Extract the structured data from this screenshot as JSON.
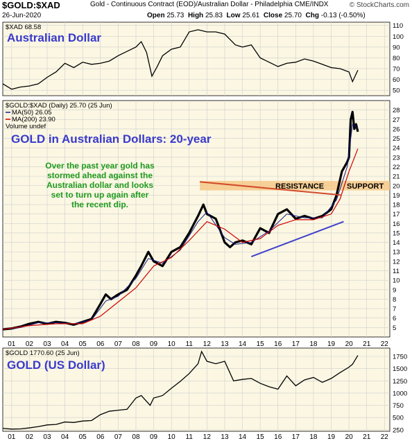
{
  "header": {
    "symbol": "$GOLD:$XAD",
    "description": "Gold - Continuous Contract (EOD)/Australian Dollar - Philadelphia  CME/INDX",
    "brand": "© StockCharts.com",
    "date": "26-Jun-2020",
    "open_label": "Open",
    "open_value": "25.73",
    "high_label": "High",
    "high_value": "25.83",
    "low_label": "Low",
    "low_value": "25.61",
    "close_label": "Close",
    "close_value": "25.70",
    "chg_label": "Chg",
    "chg_value": "-0.13 (-0.50%)"
  },
  "colors": {
    "panel_bg": "#fbf7e3",
    "grid": "#cfcfcf",
    "price": "#000000",
    "ma50": "#1a1a80",
    "ma200": "#cc0000",
    "annotation_green": "#1f9a1f",
    "title_blue": "#3a3acc",
    "resistance_line": "#d24a2a",
    "support_band": "#f6c98a",
    "trend_line": "#4040cc"
  },
  "chart_data": [
    {
      "type": "line",
      "panel": "xad",
      "legend": "$XAD 68.58",
      "title": "Australian Dollar",
      "ylim": [
        45,
        113
      ],
      "yticks": [
        50,
        60,
        70,
        80,
        90,
        100,
        110
      ],
      "series": [
        {
          "name": "$XAD",
          "x": [
            2000.5,
            2001,
            2001.5,
            2002,
            2002.5,
            2003,
            2003.5,
            2004,
            2004.5,
            2005,
            2005.5,
            2006,
            2006.5,
            2007,
            2007.5,
            2008,
            2008.3,
            2008.6,
            2008.9,
            2009.2,
            2009.5,
            2010,
            2010.5,
            2011,
            2011.5,
            2012,
            2012.5,
            2013,
            2013.3,
            2013.6,
            2014,
            2014.5,
            2015,
            2015.5,
            2016,
            2016.5,
            2017,
            2017.5,
            2018,
            2018.5,
            2019,
            2019.5,
            2020,
            2020.2,
            2020.5
          ],
          "values": [
            56,
            51,
            53,
            54,
            56,
            62,
            67,
            75,
            71,
            76,
            74,
            75,
            77,
            82,
            86,
            90,
            95,
            85,
            63,
            72,
            82,
            88,
            90,
            104,
            106,
            104,
            104,
            102,
            97,
            92,
            90,
            92,
            80,
            76,
            72,
            75,
            76,
            79,
            77,
            74,
            71,
            70,
            67,
            58,
            68.58
          ]
        }
      ]
    },
    {
      "type": "line",
      "panel": "gold_xad",
      "legend": "$GOLD:$XAD (Daily) 25.70 (25 Jun)",
      "ma_labels": [
        "MA(50) 26.05",
        "MA(200) 23.90"
      ],
      "volume_label": "Volume undef",
      "title": "GOLD in Australian Dollars: 20-year",
      "annotation": [
        "Over the past year gold has",
        "stormed ahead against the",
        "Australian dollar and looks",
        "set to turn up again after",
        "the recent dip."
      ],
      "resistance_label": "RESISTANCE",
      "support_label": "SUPPORT",
      "ylim": [
        4,
        29
      ],
      "yticks": [
        5,
        6,
        7,
        8,
        9,
        10,
        11,
        12,
        13,
        14,
        15,
        16,
        17,
        18,
        19,
        20,
        21,
        22,
        23,
        24,
        25,
        26,
        27,
        28
      ],
      "series": [
        {
          "name": "$GOLD:$XAD",
          "x": [
            2000.5,
            2001,
            2001.5,
            2002,
            2002.5,
            2003,
            2003.5,
            2004,
            2004.5,
            2005,
            2005.5,
            2006,
            2006.3,
            2006.6,
            2007,
            2007.5,
            2008,
            2008.3,
            2008.7,
            2009,
            2009.5,
            2010,
            2010.5,
            2011,
            2011.5,
            2011.8,
            2012,
            2012.5,
            2013,
            2013.3,
            2013.6,
            2014,
            2014.5,
            2015,
            2015.5,
            2016,
            2016.5,
            2017,
            2017.5,
            2018,
            2018.5,
            2019,
            2019.3,
            2019.6,
            2019.9,
            2020,
            2020.1,
            2020.2,
            2020.3,
            2020.4,
            2020.5
          ],
          "values": [
            4.8,
            4.9,
            5.1,
            5.4,
            5.6,
            5.4,
            5.6,
            5.5,
            5.3,
            5.6,
            5.9,
            7.5,
            8.5,
            8.0,
            8.5,
            9.0,
            10.5,
            11.5,
            13.0,
            12.0,
            11.5,
            13.0,
            13.5,
            15.0,
            16.8,
            18.0,
            17.0,
            16.5,
            14.0,
            13.5,
            14.0,
            14.2,
            13.8,
            15.5,
            15.0,
            17.0,
            17.5,
            16.5,
            16.8,
            16.5,
            16.8,
            17.5,
            19.0,
            21.5,
            22.5,
            23.0,
            27.0,
            27.8,
            26.0,
            26.5,
            25.7
          ]
        },
        {
          "name": "MA(50)",
          "x": [
            2000.5,
            2001.5,
            2002.5,
            2003.5,
            2004.5,
            2005.5,
            2006.3,
            2007,
            2008,
            2008.7,
            2009.5,
            2010.5,
            2011.5,
            2012,
            2013,
            2013.6,
            2014.5,
            2015.5,
            2016.5,
            2017.5,
            2018.5,
            2019.3,
            2019.9,
            2020.2,
            2020.5
          ],
          "values": [
            4.8,
            5.0,
            5.5,
            5.5,
            5.4,
            5.8,
            7.8,
            8.3,
            10.2,
            12.3,
            11.8,
            13.2,
            16.2,
            17.2,
            14.5,
            13.8,
            14.0,
            15.2,
            17.0,
            16.6,
            16.6,
            18.5,
            22.0,
            26.5,
            26.05
          ]
        },
        {
          "name": "MA(200)",
          "x": [
            2000.5,
            2002,
            2003.5,
            2005,
            2006,
            2006.8,
            2008,
            2009,
            2010,
            2011,
            2012,
            2013,
            2014,
            2015,
            2016,
            2017,
            2018,
            2019,
            2019.5,
            2020,
            2020.5
          ],
          "values": [
            4.8,
            5.2,
            5.4,
            5.4,
            6.2,
            7.4,
            9.2,
            11.5,
            12.4,
            14.2,
            16.2,
            15.4,
            14.0,
            14.4,
            15.8,
            16.4,
            16.4,
            17.0,
            18.6,
            21.5,
            23.9
          ]
        }
      ]
    },
    {
      "type": "line",
      "panel": "gold_usd",
      "legend": "$GOLD 1770.60 (25 Jun)",
      "title": "GOLD (US Dollar)",
      "ylim": [
        220,
        1920
      ],
      "yticks": [
        250,
        500,
        750,
        1000,
        1250,
        1500,
        1750
      ],
      "series": [
        {
          "name": "$GOLD",
          "x": [
            2000.5,
            2001,
            2001.5,
            2002,
            2002.5,
            2003,
            2003.5,
            2004,
            2004.5,
            2005,
            2005.5,
            2006,
            2006.5,
            2007,
            2007.5,
            2008,
            2008.3,
            2008.8,
            2009,
            2009.5,
            2010,
            2010.5,
            2011,
            2011.5,
            2011.7,
            2012,
            2012.5,
            2013,
            2013.5,
            2014,
            2014.5,
            2015,
            2015.5,
            2016,
            2016.5,
            2017,
            2017.5,
            2018,
            2018.5,
            2019,
            2019.5,
            2020,
            2020.2,
            2020.5
          ],
          "values": [
            280,
            265,
            270,
            290,
            315,
            350,
            360,
            410,
            400,
            430,
            440,
            560,
            630,
            650,
            670,
            900,
            950,
            750,
            900,
            950,
            1100,
            1240,
            1400,
            1600,
            1850,
            1650,
            1600,
            1650,
            1250,
            1280,
            1300,
            1200,
            1130,
            1080,
            1350,
            1150,
            1270,
            1320,
            1220,
            1300,
            1420,
            1530,
            1590,
            1770.6
          ]
        }
      ]
    }
  ],
  "x_axis": {
    "labels": [
      "01",
      "02",
      "03",
      "04",
      "05",
      "06",
      "07",
      "08",
      "09",
      "10",
      "11",
      "12",
      "13",
      "14",
      "15",
      "16",
      "17",
      "18",
      "19",
      "20",
      "21",
      "22"
    ]
  }
}
